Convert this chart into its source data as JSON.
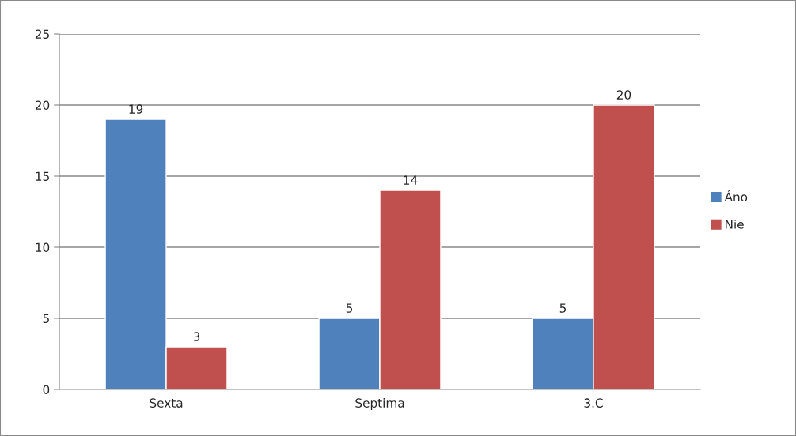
{
  "chart_data": {
    "type": "bar",
    "categories": [
      "Sexta",
      "Septima",
      "3.C"
    ],
    "series": [
      {
        "name": "Áno",
        "color": "#4f81bd",
        "values": [
          19,
          5,
          5
        ]
      },
      {
        "name": "Nie",
        "color": "#c0504d",
        "values": [
          3,
          14,
          20
        ]
      }
    ],
    "ylim": [
      0,
      25
    ],
    "yticks": [
      0,
      5,
      10,
      15,
      20,
      25
    ],
    "grid": "y",
    "legend": "right",
    "data_labels": true
  }
}
